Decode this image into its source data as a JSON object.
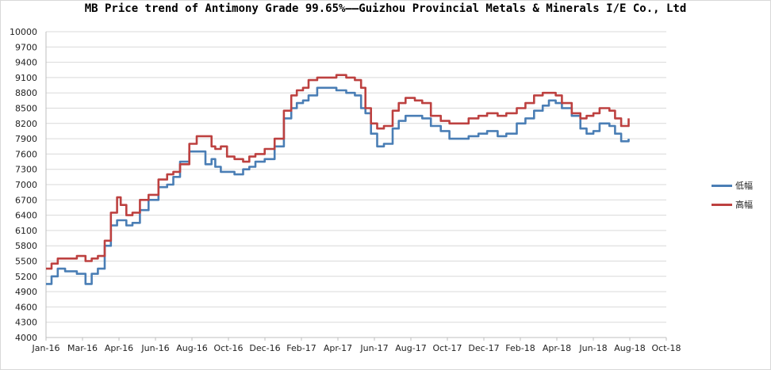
{
  "chart_data": {
    "type": "line",
    "title": "MB Price trend of Antimony Grade 99.65%——Guizhou Provincial Metals & Minerals I/E Co., Ltd",
    "xlabel": "",
    "ylabel": "",
    "ylim": [
      4000,
      10000
    ],
    "yticks": [
      4000,
      4300,
      4600,
      4900,
      5200,
      5500,
      5800,
      6100,
      6400,
      6700,
      7000,
      7300,
      7600,
      7900,
      8200,
      8500,
      8800,
      9100,
      9400,
      9700,
      10000
    ],
    "xlim": [
      "2016-01-01",
      "2018-10-01"
    ],
    "xtick_labels": [
      "Jan-16",
      "Mar-16",
      "Apr-16",
      "Jun-16",
      "Aug-16",
      "Oct-16",
      "Dec-16",
      "Feb-17",
      "Apr-17",
      "Jun-17",
      "Aug-17",
      "Oct-17",
      "Dec-17",
      "Feb-18",
      "Apr-18",
      "Jun-18",
      "Aug-18",
      "Oct-18"
    ],
    "grid": "horizontal",
    "legend": "right",
    "x": [
      "2016-01-01",
      "2016-01-10",
      "2016-01-20",
      "2016-02-01",
      "2016-02-20",
      "2016-03-05",
      "2016-03-15",
      "2016-03-25",
      "2016-04-05",
      "2016-04-15",
      "2016-04-25",
      "2016-05-01",
      "2016-05-10",
      "2016-05-20",
      "2016-06-01",
      "2016-06-15",
      "2016-07-01",
      "2016-07-15",
      "2016-07-25",
      "2016-08-05",
      "2016-08-20",
      "2016-09-01",
      "2016-09-15",
      "2016-09-25",
      "2016-10-01",
      "2016-10-10",
      "2016-10-20",
      "2016-11-01",
      "2016-11-15",
      "2016-11-25",
      "2016-12-05",
      "2016-12-20",
      "2017-01-05",
      "2017-01-20",
      "2017-02-01",
      "2017-02-10",
      "2017-02-20",
      "2017-03-01",
      "2017-03-15",
      "2017-04-01",
      "2017-04-15",
      "2017-05-01",
      "2017-05-15",
      "2017-05-25",
      "2017-06-01",
      "2017-06-10",
      "2017-06-20",
      "2017-07-01",
      "2017-07-15",
      "2017-07-25",
      "2017-08-05",
      "2017-08-20",
      "2017-09-01",
      "2017-09-15",
      "2017-10-01",
      "2017-10-15",
      "2017-11-01",
      "2017-11-15",
      "2017-12-01",
      "2017-12-15",
      "2018-01-01",
      "2018-01-15",
      "2018-02-01",
      "2018-02-15",
      "2018-03-01",
      "2018-03-15",
      "2018-03-25",
      "2018-04-05",
      "2018-04-15",
      "2018-05-01",
      "2018-05-15",
      "2018-05-25",
      "2018-06-05",
      "2018-06-15",
      "2018-07-01",
      "2018-07-10",
      "2018-07-20",
      "2018-08-01"
    ],
    "series": [
      {
        "name": "低幅",
        "color": "#4a7eb5",
        "values": [
          5050,
          5200,
          5350,
          5300,
          5250,
          5050,
          5250,
          5350,
          5800,
          6200,
          6300,
          6300,
          6200,
          6250,
          6500,
          6700,
          6950,
          7000,
          7150,
          7450,
          7650,
          7650,
          7400,
          7500,
          7350,
          7250,
          7250,
          7200,
          7300,
          7350,
          7450,
          7500,
          7750,
          8300,
          8500,
          8600,
          8650,
          8750,
          8900,
          8900,
          8850,
          8800,
          8750,
          8500,
          8400,
          8000,
          7750,
          7800,
          8100,
          8250,
          8350,
          8350,
          8300,
          8150,
          8050,
          7900,
          7900,
          7950,
          8000,
          8050,
          7950,
          8000,
          8200,
          8300,
          8450,
          8550,
          8650,
          8600,
          8500,
          8350,
          8100,
          8000,
          8050,
          8200,
          8150,
          8000,
          7850,
          7900
        ]
      },
      {
        "name": "高幅",
        "color": "#bd4140",
        "values": [
          5350,
          5450,
          5550,
          5550,
          5600,
          5500,
          5550,
          5600,
          5900,
          6450,
          6750,
          6600,
          6400,
          6450,
          6700,
          6800,
          7100,
          7200,
          7250,
          7400,
          7800,
          7950,
          7950,
          7750,
          7700,
          7750,
          7550,
          7500,
          7450,
          7550,
          7600,
          7700,
          7900,
          8450,
          8750,
          8850,
          8900,
          9050,
          9100,
          9100,
          9150,
          9100,
          9050,
          8900,
          8500,
          8200,
          8100,
          8150,
          8450,
          8600,
          8700,
          8650,
          8600,
          8350,
          8250,
          8200,
          8200,
          8300,
          8350,
          8400,
          8350,
          8400,
          8500,
          8600,
          8750,
          8800,
          8800,
          8750,
          8600,
          8400,
          8300,
          8350,
          8400,
          8500,
          8450,
          8300,
          8150,
          8300
        ]
      }
    ]
  }
}
